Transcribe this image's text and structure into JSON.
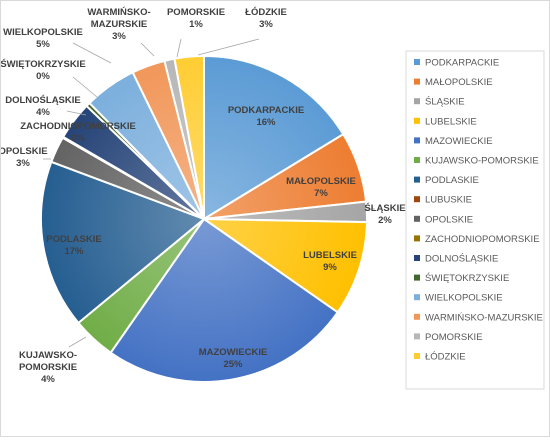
{
  "chart_data": {
    "type": "pie",
    "title": "",
    "legend_position": "right",
    "slices": [
      {
        "label": "PODKARPACKIE",
        "percent_label": "16%",
        "value": 16.3,
        "color": "#5B9BD5",
        "label_inside": true
      },
      {
        "label": "MAŁOPOLSKIE",
        "percent_label": "7%",
        "value": 7.0,
        "color": "#ED7D31",
        "label_inside": true
      },
      {
        "label": "ŚLĄSKIE",
        "percent_label": "2%",
        "value": 2.0,
        "color": "#A5A5A5",
        "label_inside": false
      },
      {
        "label": "LUBELSKIE",
        "percent_label": "9%",
        "value": 9.4,
        "color": "#FFC000",
        "label_inside": true
      },
      {
        "label": "MAZOWIECKIE",
        "percent_label": "25%",
        "value": 25.0,
        "color": "#4472C4",
        "label_inside": true
      },
      {
        "label": "KUJAWSKO-POMORSKIE",
        "percent_label": "4%",
        "value": 4.3,
        "color": "#70AD47",
        "label_inside": false
      },
      {
        "label": "PODLASKIE",
        "percent_label": "17%",
        "value": 16.7,
        "color": "#255E91",
        "label_inside": true
      },
      {
        "label": "LUBUSKIE",
        "percent_label": "",
        "value": 0,
        "color": "#9E480E",
        "label_inside": false
      },
      {
        "label": "OPOLSKIE",
        "percent_label": "3%",
        "value": 2.6,
        "color": "#636363",
        "label_inside": false
      },
      {
        "label": "ZACHODNIOPOMORSKIE",
        "percent_label": "0%",
        "value": 0.1,
        "color": "#997300",
        "label_inside": false
      },
      {
        "label": "DOLNOŚLĄSKIE",
        "percent_label": "4%",
        "value": 3.8,
        "color": "#264478",
        "label_inside": false
      },
      {
        "label": "ŚWIĘTOKRZYSKIE",
        "percent_label": "0%",
        "value": 0.4,
        "color": "#43682B",
        "label_inside": false
      },
      {
        "label": "WIELKOPOLSKIE",
        "percent_label": "5%",
        "value": 5.2,
        "color": "#7CAFDD",
        "label_inside": false
      },
      {
        "label": "WARMIŃSKO-MAZURSKIE",
        "percent_label": "3%",
        "value": 3.3,
        "color": "#F1975A",
        "label_inside": false
      },
      {
        "label": "POMORSKIE",
        "percent_label": "1%",
        "value": 1.0,
        "color": "#B7B7B7",
        "label_inside": false
      },
      {
        "label": "ŁÓDZKIE",
        "percent_label": "3%",
        "value": 2.9,
        "color": "#FFCD33",
        "label_inside": false
      }
    ]
  }
}
